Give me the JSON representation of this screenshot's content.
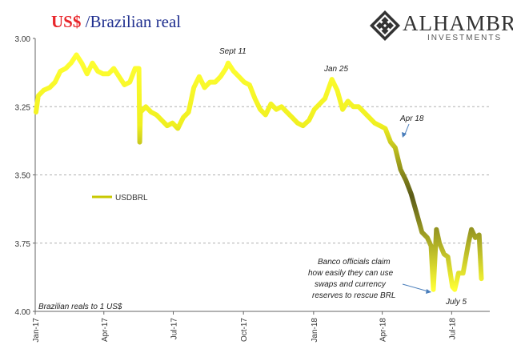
{
  "title": {
    "part1": "US$",
    "part2": " /Brazilian real"
  },
  "logo": {
    "name": "ALHAMBRA",
    "subtitle": "INVESTMENTS",
    "icon": "diamond-lattice-icon"
  },
  "chart_data": {
    "type": "line",
    "series": [
      {
        "name": "USDBRL",
        "color": "#c8c800"
      }
    ],
    "y_inverted": true,
    "ylim": [
      3.0,
      4.0
    ],
    "y_ticks": [
      "3.00",
      "3.25",
      "3.50",
      "3.75",
      "4.00"
    ],
    "x_ticks": [
      "Jan-17",
      "Apr-17",
      "Jul-17",
      "Oct-17",
      "Jan-18",
      "Apr-18",
      "Jul-18"
    ],
    "grid": "horizontal-dashed",
    "legend_placement": "middle-left",
    "points": [
      [
        "2017-01-02",
        3.27
      ],
      [
        "2017-01-05",
        3.21
      ],
      [
        "2017-01-12",
        3.19
      ],
      [
        "2017-01-20",
        3.18
      ],
      [
        "2017-01-27",
        3.16
      ],
      [
        "2017-02-03",
        3.12
      ],
      [
        "2017-02-10",
        3.11
      ],
      [
        "2017-02-17",
        3.09
      ],
      [
        "2017-02-24",
        3.06
      ],
      [
        "2017-03-03",
        3.09
      ],
      [
        "2017-03-10",
        3.13
      ],
      [
        "2017-03-17",
        3.09
      ],
      [
        "2017-03-24",
        3.12
      ],
      [
        "2017-03-31",
        3.13
      ],
      [
        "2017-04-07",
        3.13
      ],
      [
        "2017-04-14",
        3.11
      ],
      [
        "2017-04-21",
        3.14
      ],
      [
        "2017-04-28",
        3.17
      ],
      [
        "2017-05-05",
        3.16
      ],
      [
        "2017-05-12",
        3.11
      ],
      [
        "2017-05-17",
        3.11
      ],
      [
        "2017-05-18",
        3.38
      ],
      [
        "2017-05-19",
        3.27
      ],
      [
        "2017-05-26",
        3.25
      ],
      [
        "2017-06-02",
        3.27
      ],
      [
        "2017-06-09",
        3.28
      ],
      [
        "2017-06-16",
        3.3
      ],
      [
        "2017-06-23",
        3.32
      ],
      [
        "2017-06-30",
        3.31
      ],
      [
        "2017-07-07",
        3.33
      ],
      [
        "2017-07-14",
        3.29
      ],
      [
        "2017-07-21",
        3.27
      ],
      [
        "2017-07-28",
        3.18
      ],
      [
        "2017-08-04",
        3.14
      ],
      [
        "2017-08-11",
        3.18
      ],
      [
        "2017-08-18",
        3.16
      ],
      [
        "2017-08-25",
        3.16
      ],
      [
        "2017-09-01",
        3.14
      ],
      [
        "2017-09-08",
        3.11
      ],
      [
        "2017-09-11",
        3.09
      ],
      [
        "2017-09-18",
        3.12
      ],
      [
        "2017-09-25",
        3.14
      ],
      [
        "2017-10-02",
        3.16
      ],
      [
        "2017-10-09",
        3.17
      ],
      [
        "2017-10-16",
        3.22
      ],
      [
        "2017-10-23",
        3.26
      ],
      [
        "2017-10-30",
        3.28
      ],
      [
        "2017-11-06",
        3.24
      ],
      [
        "2017-11-13",
        3.26
      ],
      [
        "2017-11-20",
        3.25
      ],
      [
        "2017-11-27",
        3.27
      ],
      [
        "2017-12-04",
        3.29
      ],
      [
        "2017-12-11",
        3.31
      ],
      [
        "2017-12-18",
        3.32
      ],
      [
        "2017-12-26",
        3.3
      ],
      [
        "2018-01-02",
        3.26
      ],
      [
        "2018-01-09",
        3.24
      ],
      [
        "2018-01-16",
        3.22
      ],
      [
        "2018-01-25",
        3.15
      ],
      [
        "2018-02-01",
        3.19
      ],
      [
        "2018-02-08",
        3.26
      ],
      [
        "2018-02-15",
        3.23
      ],
      [
        "2018-02-22",
        3.25
      ],
      [
        "2018-03-01",
        3.25
      ],
      [
        "2018-03-08",
        3.27
      ],
      [
        "2018-03-15",
        3.29
      ],
      [
        "2018-03-22",
        3.31
      ],
      [
        "2018-03-29",
        3.32
      ],
      [
        "2018-04-05",
        3.33
      ],
      [
        "2018-04-12",
        3.38
      ],
      [
        "2018-04-18",
        3.4
      ],
      [
        "2018-04-25",
        3.48
      ],
      [
        "2018-05-02",
        3.52
      ],
      [
        "2018-05-09",
        3.57
      ],
      [
        "2018-05-16",
        3.64
      ],
      [
        "2018-05-23",
        3.71
      ],
      [
        "2018-05-30",
        3.73
      ],
      [
        "2018-06-04",
        3.76
      ],
      [
        "2018-06-07",
        3.92
      ],
      [
        "2018-06-11",
        3.7
      ],
      [
        "2018-06-15",
        3.75
      ],
      [
        "2018-06-21",
        3.79
      ],
      [
        "2018-06-26",
        3.8
      ],
      [
        "2018-07-02",
        3.91
      ],
      [
        "2018-07-05",
        3.92
      ],
      [
        "2018-07-10",
        3.86
      ],
      [
        "2018-07-16",
        3.86
      ],
      [
        "2018-07-23",
        3.75
      ],
      [
        "2018-07-27",
        3.7
      ],
      [
        "2018-08-01",
        3.73
      ],
      [
        "2018-08-06",
        3.72
      ],
      [
        "2018-08-09",
        3.88
      ]
    ],
    "annotations": [
      {
        "text": "Sept 11",
        "date": "2017-09-11",
        "value": 3.09
      },
      {
        "text": "Jan 25",
        "date": "2018-01-25",
        "value": 3.15
      },
      {
        "text": "Apr 18",
        "date": "2018-04-18",
        "value": 3.4
      },
      {
        "text": "July 5",
        "date": "2018-07-05",
        "value": 3.92
      },
      {
        "text": "Banco officials claim how easily they can use swaps and currency reserves to rescue BRL"
      }
    ],
    "note": "Brazilian reals to 1 US$"
  }
}
